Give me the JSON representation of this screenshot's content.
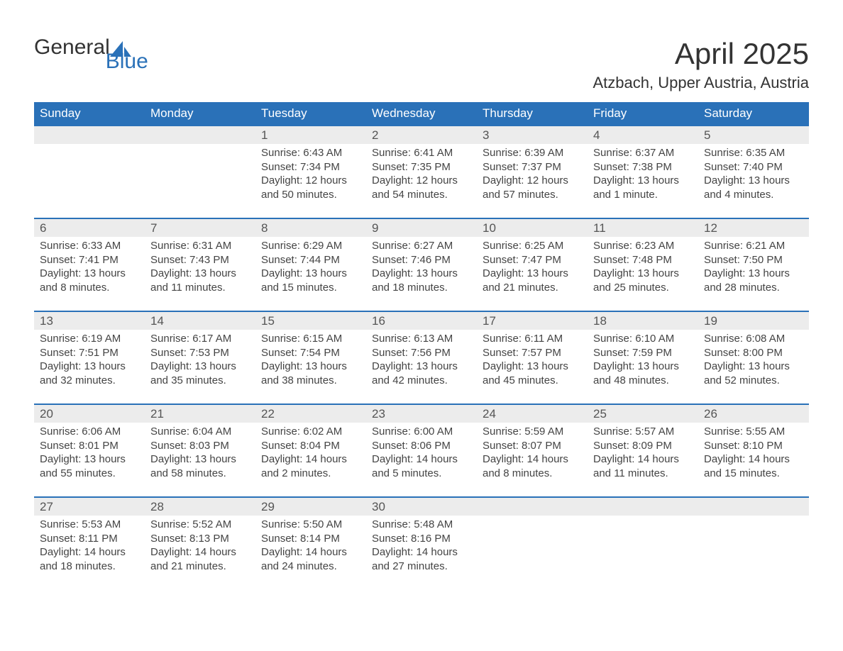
{
  "logo": {
    "text1": "General",
    "text2": "Blue"
  },
  "title": "April 2025",
  "subtitle": "Atzbach, Upper Austria, Austria",
  "colors": {
    "header_bg": "#2a71b8",
    "header_text": "#ffffff",
    "daynum_bg": "#ececec",
    "week_border": "#2a71b8",
    "body_text": "#444444",
    "logo_blue": "#2a71b8"
  },
  "dow": [
    "Sunday",
    "Monday",
    "Tuesday",
    "Wednesday",
    "Thursday",
    "Friday",
    "Saturday"
  ],
  "weeks": [
    [
      null,
      null,
      {
        "n": "1",
        "sunrise": "6:43 AM",
        "sunset": "7:34 PM",
        "daylight1": "12 hours",
        "daylight2": "and 50 minutes."
      },
      {
        "n": "2",
        "sunrise": "6:41 AM",
        "sunset": "7:35 PM",
        "daylight1": "12 hours",
        "daylight2": "and 54 minutes."
      },
      {
        "n": "3",
        "sunrise": "6:39 AM",
        "sunset": "7:37 PM",
        "daylight1": "12 hours",
        "daylight2": "and 57 minutes."
      },
      {
        "n": "4",
        "sunrise": "6:37 AM",
        "sunset": "7:38 PM",
        "daylight1": "13 hours",
        "daylight2": "and 1 minute."
      },
      {
        "n": "5",
        "sunrise": "6:35 AM",
        "sunset": "7:40 PM",
        "daylight1": "13 hours",
        "daylight2": "and 4 minutes."
      }
    ],
    [
      {
        "n": "6",
        "sunrise": "6:33 AM",
        "sunset": "7:41 PM",
        "daylight1": "13 hours",
        "daylight2": "and 8 minutes."
      },
      {
        "n": "7",
        "sunrise": "6:31 AM",
        "sunset": "7:43 PM",
        "daylight1": "13 hours",
        "daylight2": "and 11 minutes."
      },
      {
        "n": "8",
        "sunrise": "6:29 AM",
        "sunset": "7:44 PM",
        "daylight1": "13 hours",
        "daylight2": "and 15 minutes."
      },
      {
        "n": "9",
        "sunrise": "6:27 AM",
        "sunset": "7:46 PM",
        "daylight1": "13 hours",
        "daylight2": "and 18 minutes."
      },
      {
        "n": "10",
        "sunrise": "6:25 AM",
        "sunset": "7:47 PM",
        "daylight1": "13 hours",
        "daylight2": "and 21 minutes."
      },
      {
        "n": "11",
        "sunrise": "6:23 AM",
        "sunset": "7:48 PM",
        "daylight1": "13 hours",
        "daylight2": "and 25 minutes."
      },
      {
        "n": "12",
        "sunrise": "6:21 AM",
        "sunset": "7:50 PM",
        "daylight1": "13 hours",
        "daylight2": "and 28 minutes."
      }
    ],
    [
      {
        "n": "13",
        "sunrise": "6:19 AM",
        "sunset": "7:51 PM",
        "daylight1": "13 hours",
        "daylight2": "and 32 minutes."
      },
      {
        "n": "14",
        "sunrise": "6:17 AM",
        "sunset": "7:53 PM",
        "daylight1": "13 hours",
        "daylight2": "and 35 minutes."
      },
      {
        "n": "15",
        "sunrise": "6:15 AM",
        "sunset": "7:54 PM",
        "daylight1": "13 hours",
        "daylight2": "and 38 minutes."
      },
      {
        "n": "16",
        "sunrise": "6:13 AM",
        "sunset": "7:56 PM",
        "daylight1": "13 hours",
        "daylight2": "and 42 minutes."
      },
      {
        "n": "17",
        "sunrise": "6:11 AM",
        "sunset": "7:57 PM",
        "daylight1": "13 hours",
        "daylight2": "and 45 minutes."
      },
      {
        "n": "18",
        "sunrise": "6:10 AM",
        "sunset": "7:59 PM",
        "daylight1": "13 hours",
        "daylight2": "and 48 minutes."
      },
      {
        "n": "19",
        "sunrise": "6:08 AM",
        "sunset": "8:00 PM",
        "daylight1": "13 hours",
        "daylight2": "and 52 minutes."
      }
    ],
    [
      {
        "n": "20",
        "sunrise": "6:06 AM",
        "sunset": "8:01 PM",
        "daylight1": "13 hours",
        "daylight2": "and 55 minutes."
      },
      {
        "n": "21",
        "sunrise": "6:04 AM",
        "sunset": "8:03 PM",
        "daylight1": "13 hours",
        "daylight2": "and 58 minutes."
      },
      {
        "n": "22",
        "sunrise": "6:02 AM",
        "sunset": "8:04 PM",
        "daylight1": "14 hours",
        "daylight2": "and 2 minutes."
      },
      {
        "n": "23",
        "sunrise": "6:00 AM",
        "sunset": "8:06 PM",
        "daylight1": "14 hours",
        "daylight2": "and 5 minutes."
      },
      {
        "n": "24",
        "sunrise": "5:59 AM",
        "sunset": "8:07 PM",
        "daylight1": "14 hours",
        "daylight2": "and 8 minutes."
      },
      {
        "n": "25",
        "sunrise": "5:57 AM",
        "sunset": "8:09 PM",
        "daylight1": "14 hours",
        "daylight2": "and 11 minutes."
      },
      {
        "n": "26",
        "sunrise": "5:55 AM",
        "sunset": "8:10 PM",
        "daylight1": "14 hours",
        "daylight2": "and 15 minutes."
      }
    ],
    [
      {
        "n": "27",
        "sunrise": "5:53 AM",
        "sunset": "8:11 PM",
        "daylight1": "14 hours",
        "daylight2": "and 18 minutes."
      },
      {
        "n": "28",
        "sunrise": "5:52 AM",
        "sunset": "8:13 PM",
        "daylight1": "14 hours",
        "daylight2": "and 21 minutes."
      },
      {
        "n": "29",
        "sunrise": "5:50 AM",
        "sunset": "8:14 PM",
        "daylight1": "14 hours",
        "daylight2": "and 24 minutes."
      },
      {
        "n": "30",
        "sunrise": "5:48 AM",
        "sunset": "8:16 PM",
        "daylight1": "14 hours",
        "daylight2": "and 27 minutes."
      },
      null,
      null,
      null
    ]
  ],
  "labels": {
    "sunrise": "Sunrise:",
    "sunset": "Sunset:",
    "daylight": "Daylight:"
  }
}
